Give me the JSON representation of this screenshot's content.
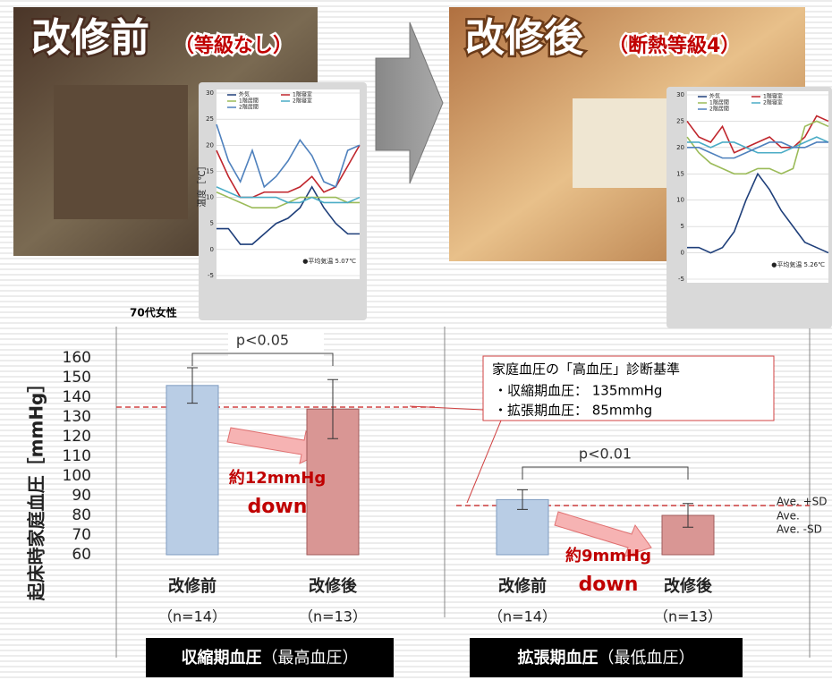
{
  "photos": [
    {
      "title": "改修前",
      "subtitle": "（等級なし）"
    },
    {
      "title": "改修後",
      "subtitle": "（断熱等級4）"
    }
  ],
  "chart_data": [
    {
      "type": "line",
      "ylabel": "温度［℃］",
      "annotation": "●平均気温 5.07℃",
      "xlim": [
        0,
        24
      ],
      "ylim": [
        -5,
        30
      ],
      "yticks": [
        -5,
        0,
        5,
        10,
        15,
        20,
        25,
        30
      ],
      "x": [
        0,
        2,
        4,
        6,
        8,
        10,
        12,
        14,
        16,
        18,
        20,
        22,
        24
      ],
      "series": [
        {
          "name": "外気",
          "color": "#1f3f7a",
          "values": [
            4,
            4,
            1,
            1,
            3,
            5,
            6,
            8,
            12,
            8,
            5,
            3,
            3
          ]
        },
        {
          "name": "1階寝室",
          "color": "#c0262d",
          "values": [
            19,
            14,
            10,
            10,
            11,
            11,
            11,
            12,
            14,
            11,
            12,
            16,
            20
          ]
        },
        {
          "name": "1階居間",
          "color": "#9bbb59",
          "values": [
            11,
            10,
            9,
            8,
            8,
            8,
            9,
            10,
            10,
            10,
            10,
            9,
            9
          ]
        },
        {
          "name": "2階寝室",
          "color": "#4bacc6",
          "values": [
            12,
            11,
            10,
            10,
            10,
            10,
            9,
            9,
            10,
            9,
            9,
            9,
            10
          ]
        },
        {
          "name": "2階居間",
          "color": "#4f81bd",
          "values": [
            24,
            17,
            13,
            19,
            12,
            14,
            17,
            21,
            18,
            13,
            12,
            19,
            20
          ]
        }
      ]
    },
    {
      "type": "line",
      "annotation": "●平均気温 5.26℃",
      "xlim": [
        0,
        24
      ],
      "ylim": [
        -5,
        30
      ],
      "yticks": [
        -5,
        0,
        5,
        10,
        15,
        20,
        25,
        30
      ],
      "x": [
        0,
        2,
        4,
        6,
        8,
        10,
        12,
        14,
        16,
        18,
        20,
        22,
        24
      ],
      "series": [
        {
          "name": "外気",
          "color": "#1f3f7a",
          "values": [
            1,
            1,
            0,
            1,
            4,
            10,
            15,
            12,
            8,
            5,
            2,
            1,
            0
          ]
        },
        {
          "name": "1階寝室",
          "color": "#c0262d",
          "values": [
            25,
            22,
            21,
            24,
            19,
            20,
            21,
            22,
            20,
            20,
            22,
            26,
            25
          ]
        },
        {
          "name": "1階居間",
          "color": "#9bbb59",
          "values": [
            22,
            19,
            17,
            16,
            15,
            15,
            16,
            16,
            15,
            16,
            24,
            25,
            24
          ]
        },
        {
          "name": "2階寝室",
          "color": "#4bacc6",
          "values": [
            21,
            21,
            20,
            21,
            21,
            20,
            19,
            19,
            19,
            20,
            21,
            22,
            21
          ]
        },
        {
          "name": "2階居間",
          "color": "#4f81bd",
          "values": [
            20,
            20,
            19,
            18,
            18,
            19,
            20,
            21,
            21,
            20,
            20,
            21,
            21
          ]
        }
      ]
    },
    {
      "type": "bar",
      "subtitle": "70代女性",
      "ylabel": "起床時家庭血圧［mmHg］",
      "ylim": [
        60,
        160
      ],
      "yticks": [
        60,
        70,
        80,
        90,
        100,
        110,
        120,
        130,
        140,
        150,
        160
      ],
      "colors": [
        "#b9cde5",
        "#d99694"
      ],
      "panels": [
        {
          "title": "収縮期血圧",
          "title_note": "（最高血圧）",
          "categories": [
            "改修前",
            "改修後"
          ],
          "sample_sizes": [
            "（n=14）",
            "（n=13）"
          ],
          "values": [
            146,
            134
          ],
          "errors": [
            9,
            15
          ],
          "significance": "p<0.05",
          "reference": 135,
          "change_label": "約12mmHg",
          "change_word": "down"
        },
        {
          "title": "拡張期血圧",
          "title_note": "（最低血圧）",
          "categories": [
            "改修前",
            "改修後"
          ],
          "sample_sizes": [
            "（n=14）",
            "（n=13）"
          ],
          "values": [
            88,
            80
          ],
          "errors": [
            5,
            6
          ],
          "significance": "p<0.01",
          "reference": 85,
          "change_label": "約9mmHg",
          "change_word": "down"
        }
      ],
      "criteria": {
        "title": "家庭血圧の「高血圧」診断基準",
        "items": [
          "・収縮期血圧：  135mmHg",
          "・拡張期血圧：    85mmhg"
        ]
      },
      "sd_labels": [
        "Ave. +SD",
        "Ave.",
        "Ave. -SD"
      ]
    }
  ]
}
